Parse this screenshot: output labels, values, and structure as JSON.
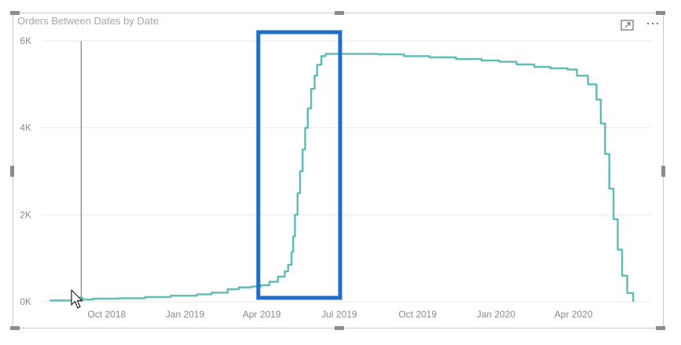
{
  "visual": {
    "title": "Orders Between Dates by Date",
    "icons": {
      "focus": "focus-mode-icon",
      "more": "more-options-icon"
    }
  },
  "colors": {
    "line": "#5dbcb3",
    "highlight_box": "#1f6fc5",
    "gridline": "#eaeaea",
    "tick_text": "#8a8a8a",
    "cursor_line": "#6b6b6b"
  },
  "chart_data": {
    "type": "line",
    "title": "Orders Between Dates by Date",
    "xlabel": "",
    "ylabel": "",
    "x_scale": "date",
    "x_ticks": [
      "Oct 2018",
      "Jan 2019",
      "Apr 2019",
      "Jul 2019",
      "Oct 2019",
      "Jan 2020",
      "Apr 2020"
    ],
    "x_tick_dates": [
      "2018-10-01",
      "2019-01-01",
      "2019-04-01",
      "2019-07-01",
      "2019-10-01",
      "2020-01-01",
      "2020-04-01"
    ],
    "y_ticks": [
      "0K",
      "2K",
      "4K",
      "6K"
    ],
    "y_tick_values": [
      0,
      2000,
      4000,
      6000
    ],
    "ylim": [
      0,
      6000
    ],
    "xlim": [
      "2018-07-24",
      "2020-06-21"
    ],
    "grid": "horizontal",
    "legend": "none",
    "series": [
      {
        "points": [
          [
            "2018-07-26",
            30
          ],
          [
            "2018-08-30",
            50
          ],
          [
            "2018-09-15",
            70
          ],
          [
            "2018-10-15",
            80
          ],
          [
            "2018-11-15",
            110
          ],
          [
            "2018-12-15",
            140
          ],
          [
            "2019-01-15",
            170
          ],
          [
            "2019-02-01",
            210
          ],
          [
            "2019-02-20",
            290
          ],
          [
            "2019-03-05",
            330
          ],
          [
            "2019-03-20",
            350
          ],
          [
            "2019-03-31",
            380
          ],
          [
            "2019-04-10",
            460
          ],
          [
            "2019-04-20",
            580
          ],
          [
            "2019-04-28",
            700
          ],
          [
            "2019-05-02",
            850
          ],
          [
            "2019-05-06",
            1150
          ],
          [
            "2019-05-08",
            1500
          ],
          [
            "2019-05-10",
            2000
          ],
          [
            "2019-05-13",
            2500
          ],
          [
            "2019-05-16",
            3000
          ],
          [
            "2019-05-19",
            3500
          ],
          [
            "2019-05-22",
            4000
          ],
          [
            "2019-05-25",
            4450
          ],
          [
            "2019-05-29",
            4900
          ],
          [
            "2019-06-02",
            5200
          ],
          [
            "2019-06-05",
            5450
          ],
          [
            "2019-06-10",
            5650
          ],
          [
            "2019-06-15",
            5700
          ],
          [
            "2019-07-15",
            5700
          ],
          [
            "2019-08-15",
            5690
          ],
          [
            "2019-09-15",
            5650
          ],
          [
            "2019-10-15",
            5620
          ],
          [
            "2019-11-15",
            5580
          ],
          [
            "2019-12-15",
            5550
          ],
          [
            "2020-01-05",
            5520
          ],
          [
            "2020-01-25",
            5460
          ],
          [
            "2020-02-15",
            5400
          ],
          [
            "2020-03-05",
            5370
          ],
          [
            "2020-03-25",
            5340
          ],
          [
            "2020-04-05",
            5200
          ],
          [
            "2020-04-18",
            5000
          ],
          [
            "2020-04-28",
            4650
          ],
          [
            "2020-05-03",
            4100
          ],
          [
            "2020-05-08",
            3400
          ],
          [
            "2020-05-13",
            2600
          ],
          [
            "2020-05-18",
            1900
          ],
          [
            "2020-05-23",
            1200
          ],
          [
            "2020-05-28",
            600
          ],
          [
            "2020-06-03",
            200
          ],
          [
            "2020-06-10",
            0
          ]
        ]
      }
    ],
    "cursor_date": "2018-09-01",
    "highlight_range": [
      "2019-03-28",
      "2019-07-02"
    ],
    "highlight_ylim": [
      0,
      6200
    ]
  }
}
